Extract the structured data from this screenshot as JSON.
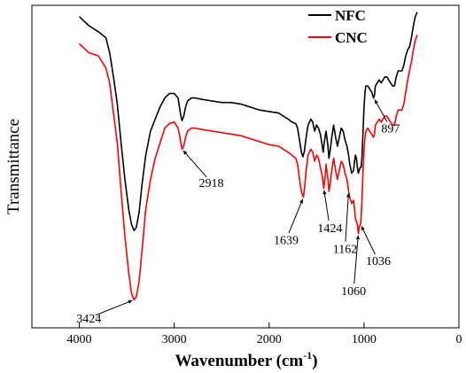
{
  "chart_data": {
    "type": "line",
    "xlabel": "Wavenumber (cm",
    "xlabel_sup": "-1",
    "xlabel_close": ")",
    "ylabel": "Transmittance",
    "xlim": [
      4500,
      0
    ],
    "xticks": [
      4000,
      3000,
      2000,
      1000,
      0
    ],
    "ylim": [
      0,
      100
    ],
    "legend_position": "top-right",
    "series": [
      {
        "name": "NFC",
        "color": "#000000",
        "points": [
          [
            4000,
            98
          ],
          [
            3900,
            95
          ],
          [
            3800,
            93
          ],
          [
            3720,
            91
          ],
          [
            3680,
            86
          ],
          [
            3640,
            78
          ],
          [
            3600,
            69
          ],
          [
            3560,
            56
          ],
          [
            3520,
            44
          ],
          [
            3480,
            34
          ],
          [
            3450,
            29
          ],
          [
            3424,
            27
          ],
          [
            3400,
            28
          ],
          [
            3370,
            33
          ],
          [
            3340,
            42
          ],
          [
            3300,
            52
          ],
          [
            3250,
            60
          ],
          [
            3200,
            64
          ],
          [
            3150,
            68
          ],
          [
            3100,
            71
          ],
          [
            3050,
            72.5
          ],
          [
            3000,
            72.5
          ],
          [
            2960,
            71
          ],
          [
            2940,
            67
          ],
          [
            2930,
            65
          ],
          [
            2918,
            63.5
          ],
          [
            2900,
            65
          ],
          [
            2880,
            68
          ],
          [
            2860,
            70
          ],
          [
            2820,
            71
          ],
          [
            2780,
            71
          ],
          [
            2700,
            70.5
          ],
          [
            2600,
            70
          ],
          [
            2500,
            69.5
          ],
          [
            2400,
            69.5
          ],
          [
            2300,
            69
          ],
          [
            2200,
            68
          ],
          [
            2100,
            67
          ],
          [
            2000,
            66.5
          ],
          [
            1900,
            66
          ],
          [
            1850,
            65
          ],
          [
            1800,
            64
          ],
          [
            1760,
            63
          ],
          [
            1720,
            62.5
          ],
          [
            1700,
            61
          ],
          [
            1680,
            57
          ],
          [
            1660,
            53
          ],
          [
            1645,
            51.5
          ],
          [
            1630,
            53
          ],
          [
            1610,
            58
          ],
          [
            1590,
            62
          ],
          [
            1560,
            64
          ],
          [
            1540,
            63
          ],
          [
            1520,
            60
          ],
          [
            1500,
            62
          ],
          [
            1480,
            61
          ],
          [
            1460,
            59
          ],
          [
            1440,
            55
          ],
          [
            1430,
            53
          ],
          [
            1420,
            56
          ],
          [
            1400,
            60
          ],
          [
            1380,
            55
          ],
          [
            1370,
            51
          ],
          [
            1355,
            54
          ],
          [
            1340,
            58
          ],
          [
            1320,
            62
          ],
          [
            1300,
            58
          ],
          [
            1280,
            55
          ],
          [
            1260,
            58
          ],
          [
            1240,
            61
          ],
          [
            1220,
            60
          ],
          [
            1200,
            57
          ],
          [
            1180,
            55
          ],
          [
            1162,
            52
          ],
          [
            1150,
            49
          ],
          [
            1130,
            46
          ],
          [
            1110,
            47
          ],
          [
            1100,
            50
          ],
          [
            1090,
            52
          ],
          [
            1080,
            51
          ],
          [
            1070,
            48
          ],
          [
            1060,
            46
          ],
          [
            1050,
            47
          ],
          [
            1040,
            48
          ],
          [
            1030,
            48
          ],
          [
            1020,
            52
          ],
          [
            1010,
            60
          ],
          [
            1000,
            68
          ],
          [
            990,
            73
          ],
          [
            980,
            75
          ],
          [
            960,
            75
          ],
          [
            940,
            74
          ],
          [
            920,
            73
          ],
          [
            900,
            71
          ],
          [
            890,
            72
          ],
          [
            880,
            75
          ],
          [
            860,
            76
          ],
          [
            840,
            77
          ],
          [
            820,
            76
          ],
          [
            800,
            77
          ],
          [
            780,
            78
          ],
          [
            760,
            78
          ],
          [
            740,
            77
          ],
          [
            720,
            76
          ],
          [
            700,
            75
          ],
          [
            680,
            75
          ],
          [
            660,
            78
          ],
          [
            640,
            80
          ],
          [
            620,
            80
          ],
          [
            600,
            80
          ],
          [
            580,
            82
          ],
          [
            560,
            85
          ],
          [
            540,
            87
          ],
          [
            520,
            88
          ],
          [
            500,
            91
          ],
          [
            480,
            95
          ],
          [
            460,
            98
          ],
          [
            440,
            99.5
          ]
        ]
      },
      {
        "name": "CNC",
        "color": "#ff0000",
        "points": [
          [
            4000,
            89
          ],
          [
            3900,
            86
          ],
          [
            3800,
            85
          ],
          [
            3720,
            81
          ],
          [
            3680,
            76
          ],
          [
            3640,
            66
          ],
          [
            3600,
            56
          ],
          [
            3560,
            40
          ],
          [
            3520,
            25
          ],
          [
            3480,
            13
          ],
          [
            3450,
            6
          ],
          [
            3424,
            4
          ],
          [
            3400,
            5
          ],
          [
            3370,
            10
          ],
          [
            3340,
            20
          ],
          [
            3300,
            34
          ],
          [
            3250,
            44
          ],
          [
            3200,
            51
          ],
          [
            3150,
            56
          ],
          [
            3100,
            61
          ],
          [
            3050,
            62.5
          ],
          [
            3000,
            63
          ],
          [
            2960,
            61
          ],
          [
            2940,
            58
          ],
          [
            2930,
            56
          ],
          [
            2918,
            54
          ],
          [
            2900,
            55
          ],
          [
            2880,
            58
          ],
          [
            2860,
            60
          ],
          [
            2820,
            61
          ],
          [
            2780,
            61
          ],
          [
            2700,
            60.5
          ],
          [
            2600,
            60
          ],
          [
            2500,
            59.5
          ],
          [
            2400,
            59
          ],
          [
            2300,
            58.5
          ],
          [
            2200,
            57.5
          ],
          [
            2100,
            56.5
          ],
          [
            2000,
            55.5
          ],
          [
            1900,
            55
          ],
          [
            1850,
            54
          ],
          [
            1800,
            53
          ],
          [
            1760,
            52
          ],
          [
            1720,
            51
          ],
          [
            1700,
            49
          ],
          [
            1680,
            44
          ],
          [
            1660,
            40
          ],
          [
            1639,
            38
          ],
          [
            1630,
            40
          ],
          [
            1610,
            47
          ],
          [
            1590,
            52
          ],
          [
            1560,
            54
          ],
          [
            1540,
            53
          ],
          [
            1520,
            50
          ],
          [
            1500,
            52
          ],
          [
            1480,
            51
          ],
          [
            1460,
            48
          ],
          [
            1440,
            45
          ],
          [
            1424,
            41
          ],
          [
            1410,
            45
          ],
          [
            1400,
            49
          ],
          [
            1380,
            44
          ],
          [
            1370,
            40
          ],
          [
            1355,
            43
          ],
          [
            1340,
            47
          ],
          [
            1320,
            51
          ],
          [
            1300,
            47
          ],
          [
            1280,
            44
          ],
          [
            1260,
            47
          ],
          [
            1240,
            50
          ],
          [
            1220,
            49
          ],
          [
            1200,
            46
          ],
          [
            1180,
            44
          ],
          [
            1162,
            40
          ],
          [
            1150,
            38
          ],
          [
            1130,
            36
          ],
          [
            1110,
            37
          ],
          [
            1100,
            34
          ],
          [
            1090,
            31
          ],
          [
            1080,
            30
          ],
          [
            1070,
            29
          ],
          [
            1060,
            26
          ],
          [
            1050,
            28
          ],
          [
            1040,
            29
          ],
          [
            1036,
            29
          ],
          [
            1030,
            32
          ],
          [
            1020,
            38
          ],
          [
            1010,
            47
          ],
          [
            1000,
            54
          ],
          [
            990,
            58
          ],
          [
            980,
            60
          ],
          [
            960,
            61
          ],
          [
            940,
            60
          ],
          [
            920,
            59
          ],
          [
            900,
            58
          ],
          [
            890,
            59
          ],
          [
            880,
            62
          ],
          [
            860,
            63
          ],
          [
            840,
            64
          ],
          [
            820,
            63
          ],
          [
            800,
            64
          ],
          [
            780,
            65
          ],
          [
            760,
            65
          ],
          [
            740,
            64
          ],
          [
            720,
            63
          ],
          [
            700,
            62
          ],
          [
            680,
            62
          ],
          [
            660,
            65
          ],
          [
            640,
            67
          ],
          [
            620,
            67
          ],
          [
            600,
            67
          ],
          [
            580,
            69
          ],
          [
            560,
            73
          ],
          [
            540,
            77
          ],
          [
            520,
            80
          ],
          [
            500,
            83
          ],
          [
            480,
            87
          ],
          [
            460,
            90
          ],
          [
            440,
            92
          ]
        ]
      }
    ],
    "annotations": [
      {
        "text": "3424",
        "x": 3424,
        "y": 4,
        "label_x": 3900,
        "label_y": -2,
        "series": "CNC"
      },
      {
        "text": "2918",
        "x": 2918,
        "y": 54,
        "label_x": 2610,
        "label_y": 43,
        "series": "CNC"
      },
      {
        "text": "1639",
        "x": 1639,
        "y": 38,
        "label_x": 1820,
        "label_y": 24,
        "series": "CNC"
      },
      {
        "text": "1424",
        "x": 1424,
        "y": 41,
        "label_x": 1360,
        "label_y": 28,
        "series": "CNC"
      },
      {
        "text": "1162",
        "x": 1162,
        "y": 40,
        "label_x": 1200,
        "label_y": 21,
        "series": "CNC"
      },
      {
        "text": "1060",
        "x": 1060,
        "y": 26,
        "label_x": 1110,
        "label_y": 7,
        "series": "CNC"
      },
      {
        "text": "1036",
        "x": 1036,
        "y": 29,
        "label_x": 850,
        "label_y": 17,
        "series": "CNC"
      },
      {
        "text": "897",
        "x": 897,
        "y": 71,
        "label_x": 720,
        "label_y": 61,
        "series": "NFC"
      }
    ]
  }
}
